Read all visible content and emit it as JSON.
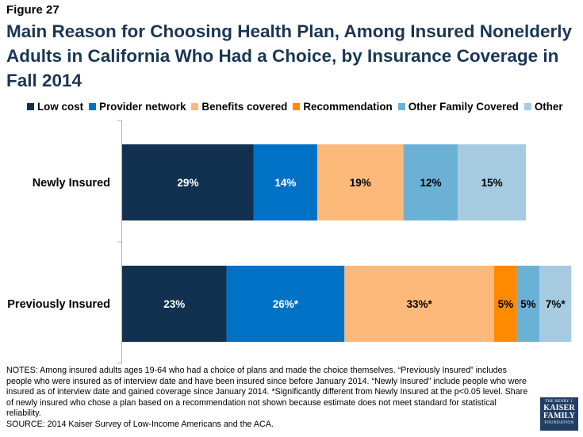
{
  "figure_label": "Figure 27",
  "title": "Main Reason for Choosing Health Plan, Among Insured Nonelderly Adults in California Who Had a Choice, by Insurance Coverage in Fall 2014",
  "notes": "NOTES: Among insured adults ages 19-64 who had a choice of plans and made the choice themselves. “Previously Insured” includes people who were insured as of interview date and have been insured since before January 2014. “Newly Insured” include people who were insured as of interview date and gained coverage since January 2014. *Significantly different from Newly Insured at the p<0.05 level. Share of newly insured who chose a plan based on a recommendation not shown because estimate does not meet standard for statistical reliability.",
  "source": "SOURCE: 2014 Kaiser Survey of Low-Income Americans and the ACA.",
  "logo": {
    "line1": "THE HENRY J.",
    "line2": "KAISER",
    "line3": "FAMILY",
    "line4": "FOUNDATION"
  },
  "chart_data": {
    "type": "bar",
    "orientation": "horizontal",
    "stacked": true,
    "categories": [
      "Newly Insured",
      "Previously Insured"
    ],
    "xlim": [
      0,
      100
    ],
    "grid": false,
    "legend_position": "top",
    "series": [
      {
        "name": "Low cost",
        "color": "#12304f",
        "values": [
          29,
          23
        ],
        "labels": [
          "29%",
          "23%"
        ]
      },
      {
        "name": "Provider network",
        "color": "#0072c6",
        "values": [
          14,
          26
        ],
        "labels": [
          "14%",
          "26%*"
        ]
      },
      {
        "name": "Benefits covered",
        "color": "#fdb97a",
        "values": [
          19,
          33
        ],
        "labels": [
          "19%",
          "33%*"
        ]
      },
      {
        "name": "Recommendation",
        "color": "#ff8a00",
        "values": [
          null,
          5
        ],
        "labels": [
          "",
          "5%"
        ]
      },
      {
        "name": "Other Family Covered",
        "color": "#6bb1d6",
        "values": [
          12,
          5
        ],
        "labels": [
          "12%",
          "5%"
        ]
      },
      {
        "name": "Other",
        "color": "#a6cbe0",
        "values": [
          15,
          7
        ],
        "labels": [
          "15%",
          "7%*"
        ]
      }
    ]
  }
}
